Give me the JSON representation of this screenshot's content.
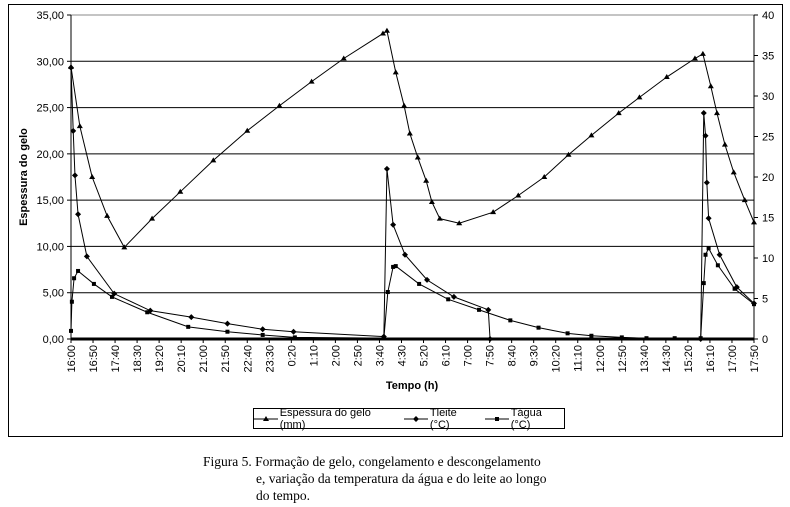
{
  "chart_data": {
    "type": "line",
    "xlabel": "Tempo (h)",
    "ylabel": "Espessura do gelo",
    "ylim": [
      0,
      35
    ],
    "y2lim": [
      0,
      40
    ],
    "yticks": [
      "0,00",
      "5,00",
      "10,00",
      "15,00",
      "20,00",
      "25,00",
      "30,00",
      "35,00"
    ],
    "y2ticks": [
      "0",
      "5",
      "10",
      "15",
      "20",
      "25",
      "30",
      "35",
      "40"
    ],
    "grid": true,
    "legend_position": "bottom",
    "xticks": [
      "16:00",
      "16:50",
      "17:40",
      "18:30",
      "19:20",
      "20:10",
      "21:00",
      "21:50",
      "22:40",
      "23:30",
      "0:20",
      "1:10",
      "2:00",
      "2:50",
      "3:40",
      "4:30",
      "5:20",
      "6:10",
      "7:00",
      "7:50",
      "8:40",
      "9:30",
      "10:20",
      "11:10",
      "12:00",
      "12:50",
      "13:40",
      "14:30",
      "15:20",
      "16:10",
      "17:00",
      "17:50"
    ],
    "series": [
      {
        "name": "Espessura do gelo (mm)",
        "axis": "left",
        "marker": "triangle",
        "x": [
          "16:00",
          "16:20",
          "16:48",
          "17:22",
          "18:01",
          "19:04",
          "20:08",
          "21:23",
          "22:40",
          "23:53",
          "01:06",
          "02:19",
          "03:48",
          "03:57",
          "04:17",
          "04:36",
          "04:49",
          "05:07",
          "05:26",
          "05:39",
          "05:57",
          "06:41",
          "07:58",
          "08:55",
          "09:54",
          "10:49",
          "11:41",
          "12:43",
          "13:30",
          "14:32",
          "15:36",
          "15:54",
          "16:12",
          "16:26",
          "16:44",
          "17:04",
          "17:29",
          "17:50"
        ],
        "y": [
          29.4,
          23.0,
          17.5,
          13.3,
          9.9,
          13.0,
          15.9,
          19.3,
          22.5,
          25.2,
          27.8,
          30.3,
          33.0,
          33.3,
          28.8,
          25.2,
          22.2,
          19.6,
          17.1,
          14.8,
          13.0,
          12.5,
          13.7,
          15.5,
          17.5,
          19.9,
          22.0,
          24.4,
          26.1,
          28.3,
          30.3,
          30.8,
          27.3,
          24.4,
          21.0,
          18.0,
          15.0,
          12.6
        ]
      },
      {
        "name": "Tleite (°C)",
        "axis": "right",
        "marker": "diamond",
        "x": [
          "16:00",
          "16:05",
          "16:09",
          "16:16",
          "16:36",
          "17:38",
          "19:00",
          "20:33",
          "21:55",
          "23:15",
          "00:25",
          "03:50",
          "03:57",
          "04:11",
          "04:38",
          "05:28",
          "06:29",
          "07:47",
          "07:51",
          "15:49",
          "15:56",
          "16:00",
          "16:03",
          "16:07",
          "16:32",
          "17:11",
          "17:50"
        ],
        "y": [
          33.5,
          25.7,
          20.2,
          15.4,
          10.2,
          5.6,
          3.5,
          2.7,
          1.9,
          1.2,
          0.9,
          0.3,
          21.0,
          14.1,
          10.4,
          7.3,
          5.2,
          3.6,
          0,
          0,
          27.9,
          25.1,
          19.3,
          14.9,
          10.4,
          6.4,
          4.4
        ]
      },
      {
        "name": "Tágua (°C)",
        "axis": "right",
        "marker": "square",
        "x": [
          "16:00",
          "16:02",
          "16:07",
          "16:16",
          "16:52",
          "17:33",
          "18:53",
          "20:26",
          "21:55",
          "23:15",
          "00:28",
          "03:50",
          "03:59",
          "04:11",
          "04:17",
          "05:10",
          "06:16",
          "07:26",
          "08:37",
          "09:41",
          "10:47",
          "11:41",
          "12:50",
          "13:46",
          "14:50",
          "15:49",
          "15:56",
          "16:00",
          "16:07",
          "16:28",
          "17:06",
          "17:50"
        ],
        "y": [
          1.0,
          4.6,
          7.5,
          8.4,
          6.8,
          5.2,
          3.3,
          1.5,
          0.9,
          0.5,
          0.2,
          0.1,
          5.8,
          8.9,
          9.0,
          6.8,
          4.9,
          3.6,
          2.3,
          1.4,
          0.7,
          0.4,
          0.2,
          0.1,
          0.1,
          0.1,
          6.9,
          10.4,
          11.2,
          9.1,
          6.2,
          4.3
        ]
      }
    ]
  },
  "caption": {
    "line1": "Figura 5. Formação de gelo, congelamento e descongelamento",
    "line2": "e, variação da temperatura da água e do leite ao longo",
    "line3": "do tempo."
  }
}
